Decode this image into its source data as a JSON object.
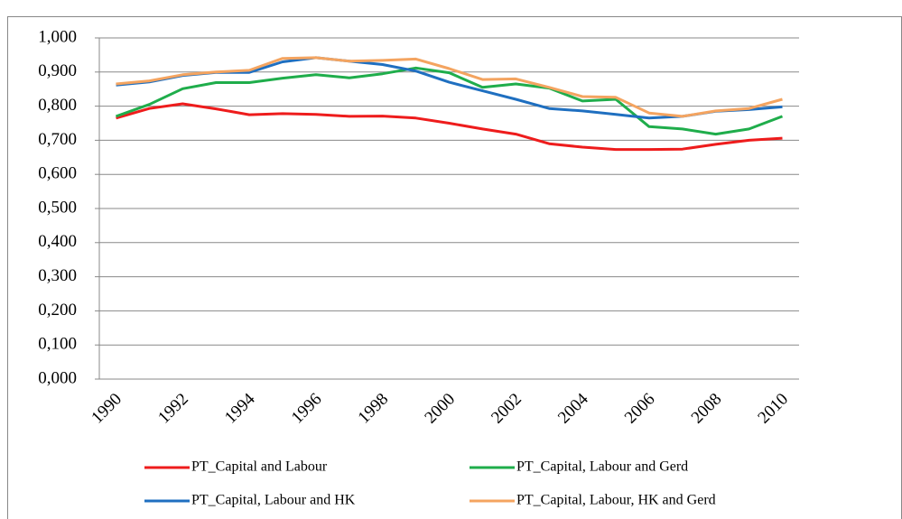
{
  "chart_data": {
    "type": "line",
    "categories": [
      "1990",
      null,
      "1992",
      null,
      "1994",
      null,
      "1996",
      null,
      "1998",
      null,
      "2000",
      null,
      "2002",
      null,
      "2004",
      null,
      "2006",
      null,
      "2008",
      null,
      "2010"
    ],
    "series": [
      {
        "name": "PT_Capital and Labour",
        "color": "#ee1c1c",
        "values": [
          0.765,
          0.793,
          0.807,
          0.792,
          0.775,
          0.778,
          0.776,
          0.77,
          0.771,
          0.765,
          0.75,
          0.733,
          0.718,
          0.69,
          0.68,
          0.673,
          0.673,
          0.674,
          0.688,
          0.7,
          0.706
        ]
      },
      {
        "name": "PT_Capital, Labour and Gerd",
        "color": "#1fad4b",
        "values": [
          0.77,
          0.805,
          0.851,
          0.869,
          0.869,
          0.882,
          0.892,
          0.883,
          0.895,
          0.912,
          0.898,
          0.855,
          0.865,
          0.853,
          0.815,
          0.82,
          0.74,
          0.733,
          0.718,
          0.733,
          0.77
        ]
      },
      {
        "name": "PT_Capital, Labour and HK",
        "color": "#1f6fc0",
        "values": [
          0.862,
          0.871,
          0.89,
          0.899,
          0.899,
          0.93,
          0.942,
          0.932,
          0.922,
          0.903,
          0.87,
          0.845,
          0.82,
          0.793,
          0.786,
          0.776,
          0.765,
          0.77,
          0.785,
          0.79,
          0.798
        ]
      },
      {
        "name": "PT_Capital, Labour, HK and Gerd",
        "color": "#f4a460",
        "values": [
          0.865,
          0.874,
          0.892,
          0.9,
          0.905,
          0.94,
          0.942,
          0.932,
          0.934,
          0.938,
          0.91,
          0.878,
          0.88,
          0.855,
          0.828,
          0.826,
          0.78,
          0.77,
          0.786,
          0.793,
          0.82
        ]
      }
    ],
    "ylim": [
      0,
      1
    ],
    "yticks": [
      {
        "value": 0,
        "label": "0,000"
      },
      {
        "value": 0.1,
        "label": "0,100"
      },
      {
        "value": 0.2,
        "label": "0,200"
      },
      {
        "value": 0.3,
        "label": "0,300"
      },
      {
        "value": 0.4,
        "label": "0,400"
      },
      {
        "value": 0.5,
        "label": "0,500"
      },
      {
        "value": 0.6,
        "label": "0,600"
      },
      {
        "value": 0.7,
        "label": "0,700"
      },
      {
        "value": 0.8,
        "label": "0,800"
      },
      {
        "value": 0.9,
        "label": "0,900"
      },
      {
        "value": 1,
        "label": "1,000"
      }
    ],
    "grid": true,
    "legend": "bottom"
  }
}
